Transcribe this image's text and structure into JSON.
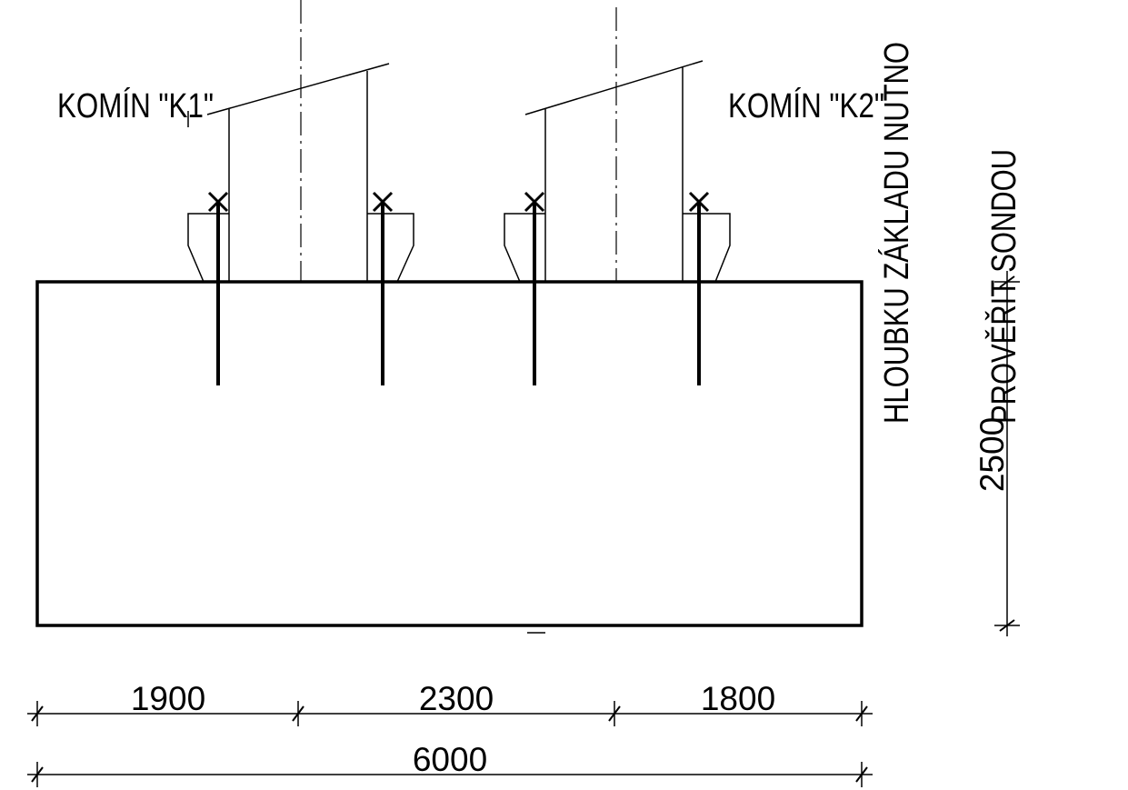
{
  "labels": {
    "chimney_k1": "KOMÍN \"K1\"",
    "chimney_k2": "KOMÍN \"K2\"",
    "note_line1": "HLOUBKU ZÁKLADU NUTNO",
    "note_line2": "PROVĚŘIT SONDOU"
  },
  "dimensions": {
    "seg1": "1900",
    "seg2": "2300",
    "seg3": "1800",
    "total": "6000",
    "depth": "2500"
  }
}
